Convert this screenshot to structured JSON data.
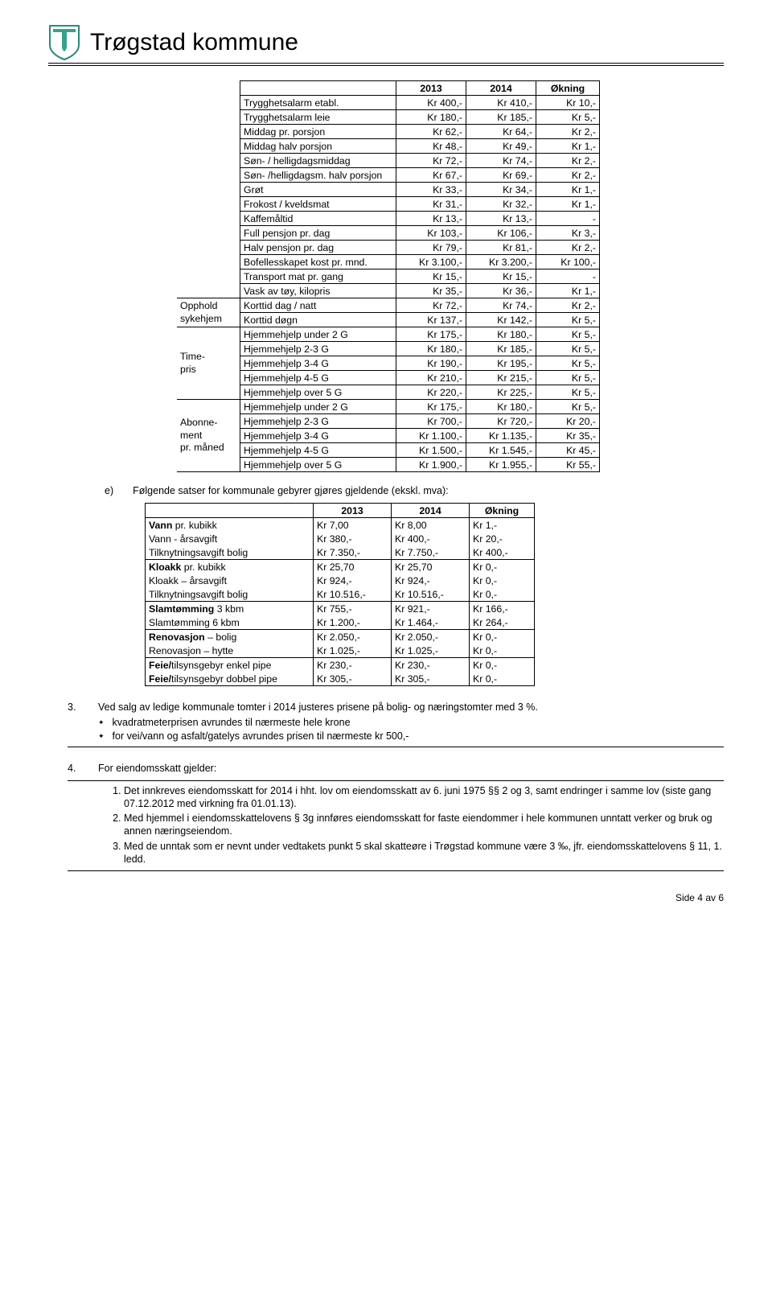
{
  "header": {
    "title": "Trøgstad kommune"
  },
  "main_table": {
    "headers": [
      "2013",
      "2014",
      "Økning"
    ],
    "group_labels": {
      "opphold": "Opphold\nsykehjem",
      "timepris": "Time-\npris",
      "abonnement": "Abonne-\nment\npr. måned"
    },
    "rows": [
      [
        "Trygghetsalarm etabl.",
        "Kr 400,-",
        "Kr 410,-",
        "Kr 10,-"
      ],
      [
        "Trygghetsalarm leie",
        "Kr 180,-",
        "Kr 185,-",
        "Kr 5,-"
      ],
      [
        "Middag pr. porsjon",
        "Kr 62,-",
        "Kr 64,-",
        "Kr 2,-"
      ],
      [
        "Middag halv porsjon",
        "Kr 48,-",
        "Kr 49,-",
        "Kr 1,-"
      ],
      [
        "Søn- / helligdagsmiddag",
        "Kr 72,-",
        "Kr 74,-",
        "Kr 2,-"
      ],
      [
        "Søn- /helligdagsm. halv porsjon",
        "Kr 67,-",
        "Kr 69,-",
        "Kr 2,-"
      ],
      [
        "Grøt",
        "Kr 33,-",
        "Kr 34,-",
        "Kr 1,-"
      ],
      [
        "Frokost / kveldsmat",
        "Kr 31,-",
        "Kr 32,-",
        "Kr 1,-"
      ],
      [
        "Kaffemåltid",
        "Kr 13,-",
        "Kr 13,-",
        "-"
      ],
      [
        "Full pensjon pr. dag",
        "Kr 103,-",
        "Kr 106,-",
        "Kr 3,-"
      ],
      [
        "Halv pensjon pr. dag",
        "Kr 79,-",
        "Kr 81,-",
        "Kr 2,-"
      ],
      [
        "Bofellesskapet kost pr. mnd.",
        "Kr 3.100,-",
        "Kr 3.200,-",
        "Kr 100,-"
      ],
      [
        "Transport mat pr. gang",
        "Kr 15,-",
        "Kr 15,-",
        "-"
      ],
      [
        "Vask av tøy, kilopris",
        "Kr 35,-",
        "Kr 36,-",
        "Kr 1,-"
      ]
    ],
    "opphold_rows": [
      [
        "Korttid dag / natt",
        "Kr 72,-",
        "Kr 74,-",
        "Kr 2,-"
      ],
      [
        "Korttid døgn",
        "Kr 137,-",
        "Kr 142,-",
        "Kr 5,-"
      ]
    ],
    "timepris_rows": [
      [
        "Hjemmehjelp under 2 G",
        "Kr 175,-",
        "Kr 180,-",
        "Kr 5,-"
      ],
      [
        "Hjemmehjelp 2-3 G",
        "Kr 180,-",
        "Kr 185,-",
        "Kr 5,-"
      ],
      [
        "Hjemmehjelp 3-4 G",
        "Kr 190,-",
        "Kr 195,-",
        "Kr 5,-"
      ],
      [
        "Hjemmehjelp 4-5 G",
        "Kr 210,-",
        "Kr 215,-",
        "Kr 5,-"
      ],
      [
        "Hjemmehjelp over 5 G",
        "Kr 220,-",
        "Kr 225,-",
        "Kr 5,-"
      ]
    ],
    "abonnement_rows": [
      [
        "Hjemmehjelp under 2 G",
        "Kr 175,-",
        "Kr 180,-",
        "Kr 5,-"
      ],
      [
        "Hjemmehjelp 2-3 G",
        "Kr 700,-",
        "Kr 720,-",
        "Kr 20,-"
      ],
      [
        "Hjemmehjelp 3-4 G",
        "Kr 1.100,-",
        "Kr 1.135,-",
        "Kr 35,-"
      ],
      [
        "Hjemmehjelp 4-5 G",
        "Kr 1.500,-",
        "Kr 1.545,-",
        "Kr 45,-"
      ],
      [
        "Hjemmehjelp over 5 G",
        "Kr 1.900,-",
        "Kr 1.955,-",
        "Kr 55,-"
      ]
    ]
  },
  "section_e": {
    "letter": "e)",
    "text": "Følgende satser for kommunale gebyrer gjøres gjeldende (ekskl. mva):"
  },
  "fee_table": {
    "headers": [
      "2013",
      "2014",
      "Økning"
    ],
    "groups": [
      [
        [
          "<b>Vann</b> pr. kubikk",
          "Kr 7,00",
          "Kr 8,00",
          "Kr 1,-"
        ],
        [
          "Vann - årsavgift",
          "Kr 380,-",
          "Kr 400,-",
          "Kr 20,-"
        ],
        [
          "Tilknytningsavgift bolig",
          "Kr 7.350,-",
          "Kr 7.750,-",
          "Kr 400,-"
        ]
      ],
      [
        [
          "<b>Kloakk</b> pr. kubikk",
          "Kr 25,70",
          "Kr 25,70",
          "Kr 0,-"
        ],
        [
          "Kloakk – årsavgift",
          "Kr 924,-",
          "Kr 924,-",
          "Kr 0,-"
        ],
        [
          "Tilknytningsavgift bolig",
          "Kr 10.516,-",
          "Kr 10.516,-",
          "Kr 0,-"
        ]
      ],
      [
        [
          "<b>Slamtømming</b> 3 kbm",
          "Kr 755,-",
          "Kr 921,-",
          "Kr 166,-"
        ],
        [
          "Slamtømming 6 kbm",
          "Kr 1.200,-",
          "Kr 1.464,-",
          "Kr 264,-"
        ]
      ],
      [
        [
          "<b>Renovasjon</b> – bolig",
          "Kr 2.050,-",
          "Kr 2.050,-",
          "Kr 0,-"
        ],
        [
          "Renovasjon – hytte",
          "Kr 1.025,-",
          "Kr 1.025,-",
          "Kr 0,-"
        ]
      ],
      [
        [
          "<b>Feie/</b>tilsynsgebyr enkel pipe",
          "Kr 230,-",
          "Kr 230,-",
          "Kr 0,-"
        ],
        [
          "<b>Feie/</b>tilsynsgebyr dobbel pipe",
          "Kr 305,-",
          "Kr 305,-",
          "Kr 0,-"
        ]
      ]
    ]
  },
  "item3": {
    "n": "3.",
    "lead": "Ved salg av ledige kommunale tomter i 2014 justeres prisene på bolig- og næringstomter med 3 %.",
    "bullets": [
      "kvadratmeterprisen avrundes til nærmeste hele krone",
      "for vei/vann og asfalt/gatelys avrundes prisen til nærmeste kr 500,-"
    ]
  },
  "item4": {
    "n": "4.",
    "lead": "For eiendomsskatt gjelder:",
    "ol": [
      "Det innkreves eiendomsskatt for 2014 i hht. lov om eiendomsskatt av 6. juni 1975 §§ 2 og 3, samt endringer i samme lov (siste gang 07.12.2012 med virkning fra 01.01.13).",
      "Med hjemmel i eiendomsskattelovens § 3g innføres eiendomsskatt for faste eiendommer i hele kommunen unntatt verker og bruk og annen næringseiendom.",
      "Med de unntak som er nevnt under vedtakets punkt 5 skal skatteøre i Trøgstad kommune være 3 ‰, jfr. eiendomsskattelovens § 11, 1. ledd."
    ]
  },
  "footer": "Side 4 av 6"
}
